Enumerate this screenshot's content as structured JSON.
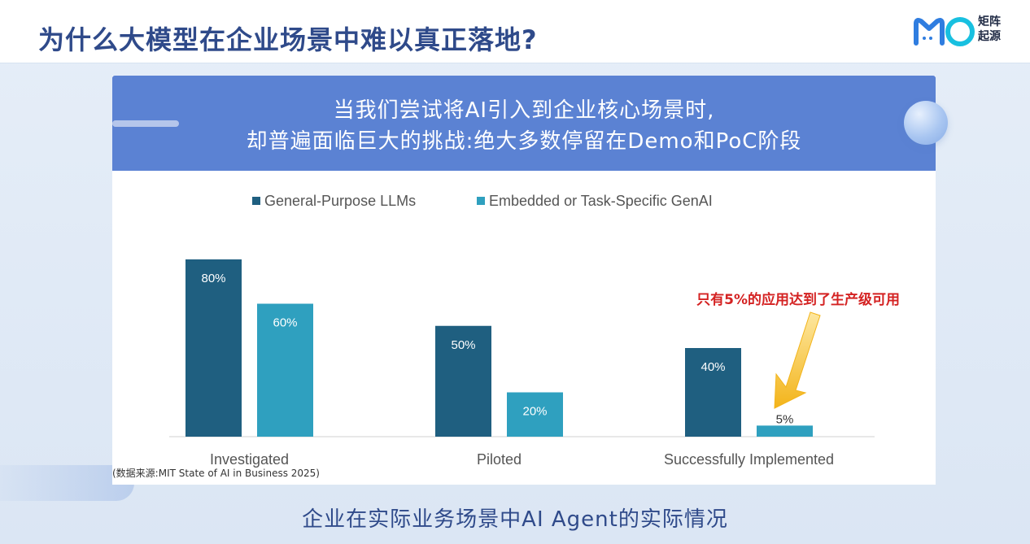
{
  "header": {
    "title": "为什么大模型在企业场景中难以真正落地?",
    "logo_text_line1": "矩阵",
    "logo_text_line2": "起源"
  },
  "banner": {
    "line1": "当我们尝试将AI引入到企业核心场景时,",
    "line2": "却普遍面临巨大的挑战:绝大多数停留在Demo和PoC阶段"
  },
  "annotation": "只有5%的应用达到了生产级可用",
  "source_note": "(数据来源:MIT State of AI in Business 2025)",
  "caption": "企业在实际业务场景中AI Agent的实际情况",
  "colors": {
    "series1": "#1f5f80",
    "series2": "#2fa0bf",
    "annotation": "#d42222",
    "arrow": "#f3b41a",
    "banner": "#5b82d3",
    "title": "#2f4a8a"
  },
  "chart_data": {
    "type": "bar",
    "categories": [
      "Investigated",
      "Piloted",
      "Successfully Implemented"
    ],
    "series": [
      {
        "name": "General-Purpose LLMs",
        "values": [
          80,
          50,
          40
        ],
        "labels": [
          "80%",
          "50%",
          "40%"
        ]
      },
      {
        "name": "Embedded or Task-Specific GenAI",
        "values": [
          60,
          20,
          5
        ],
        "labels": [
          "60%",
          "20%",
          "5%"
        ]
      }
    ],
    "ylim": [
      0,
      80
    ],
    "legend_position": "top",
    "grid": false
  }
}
